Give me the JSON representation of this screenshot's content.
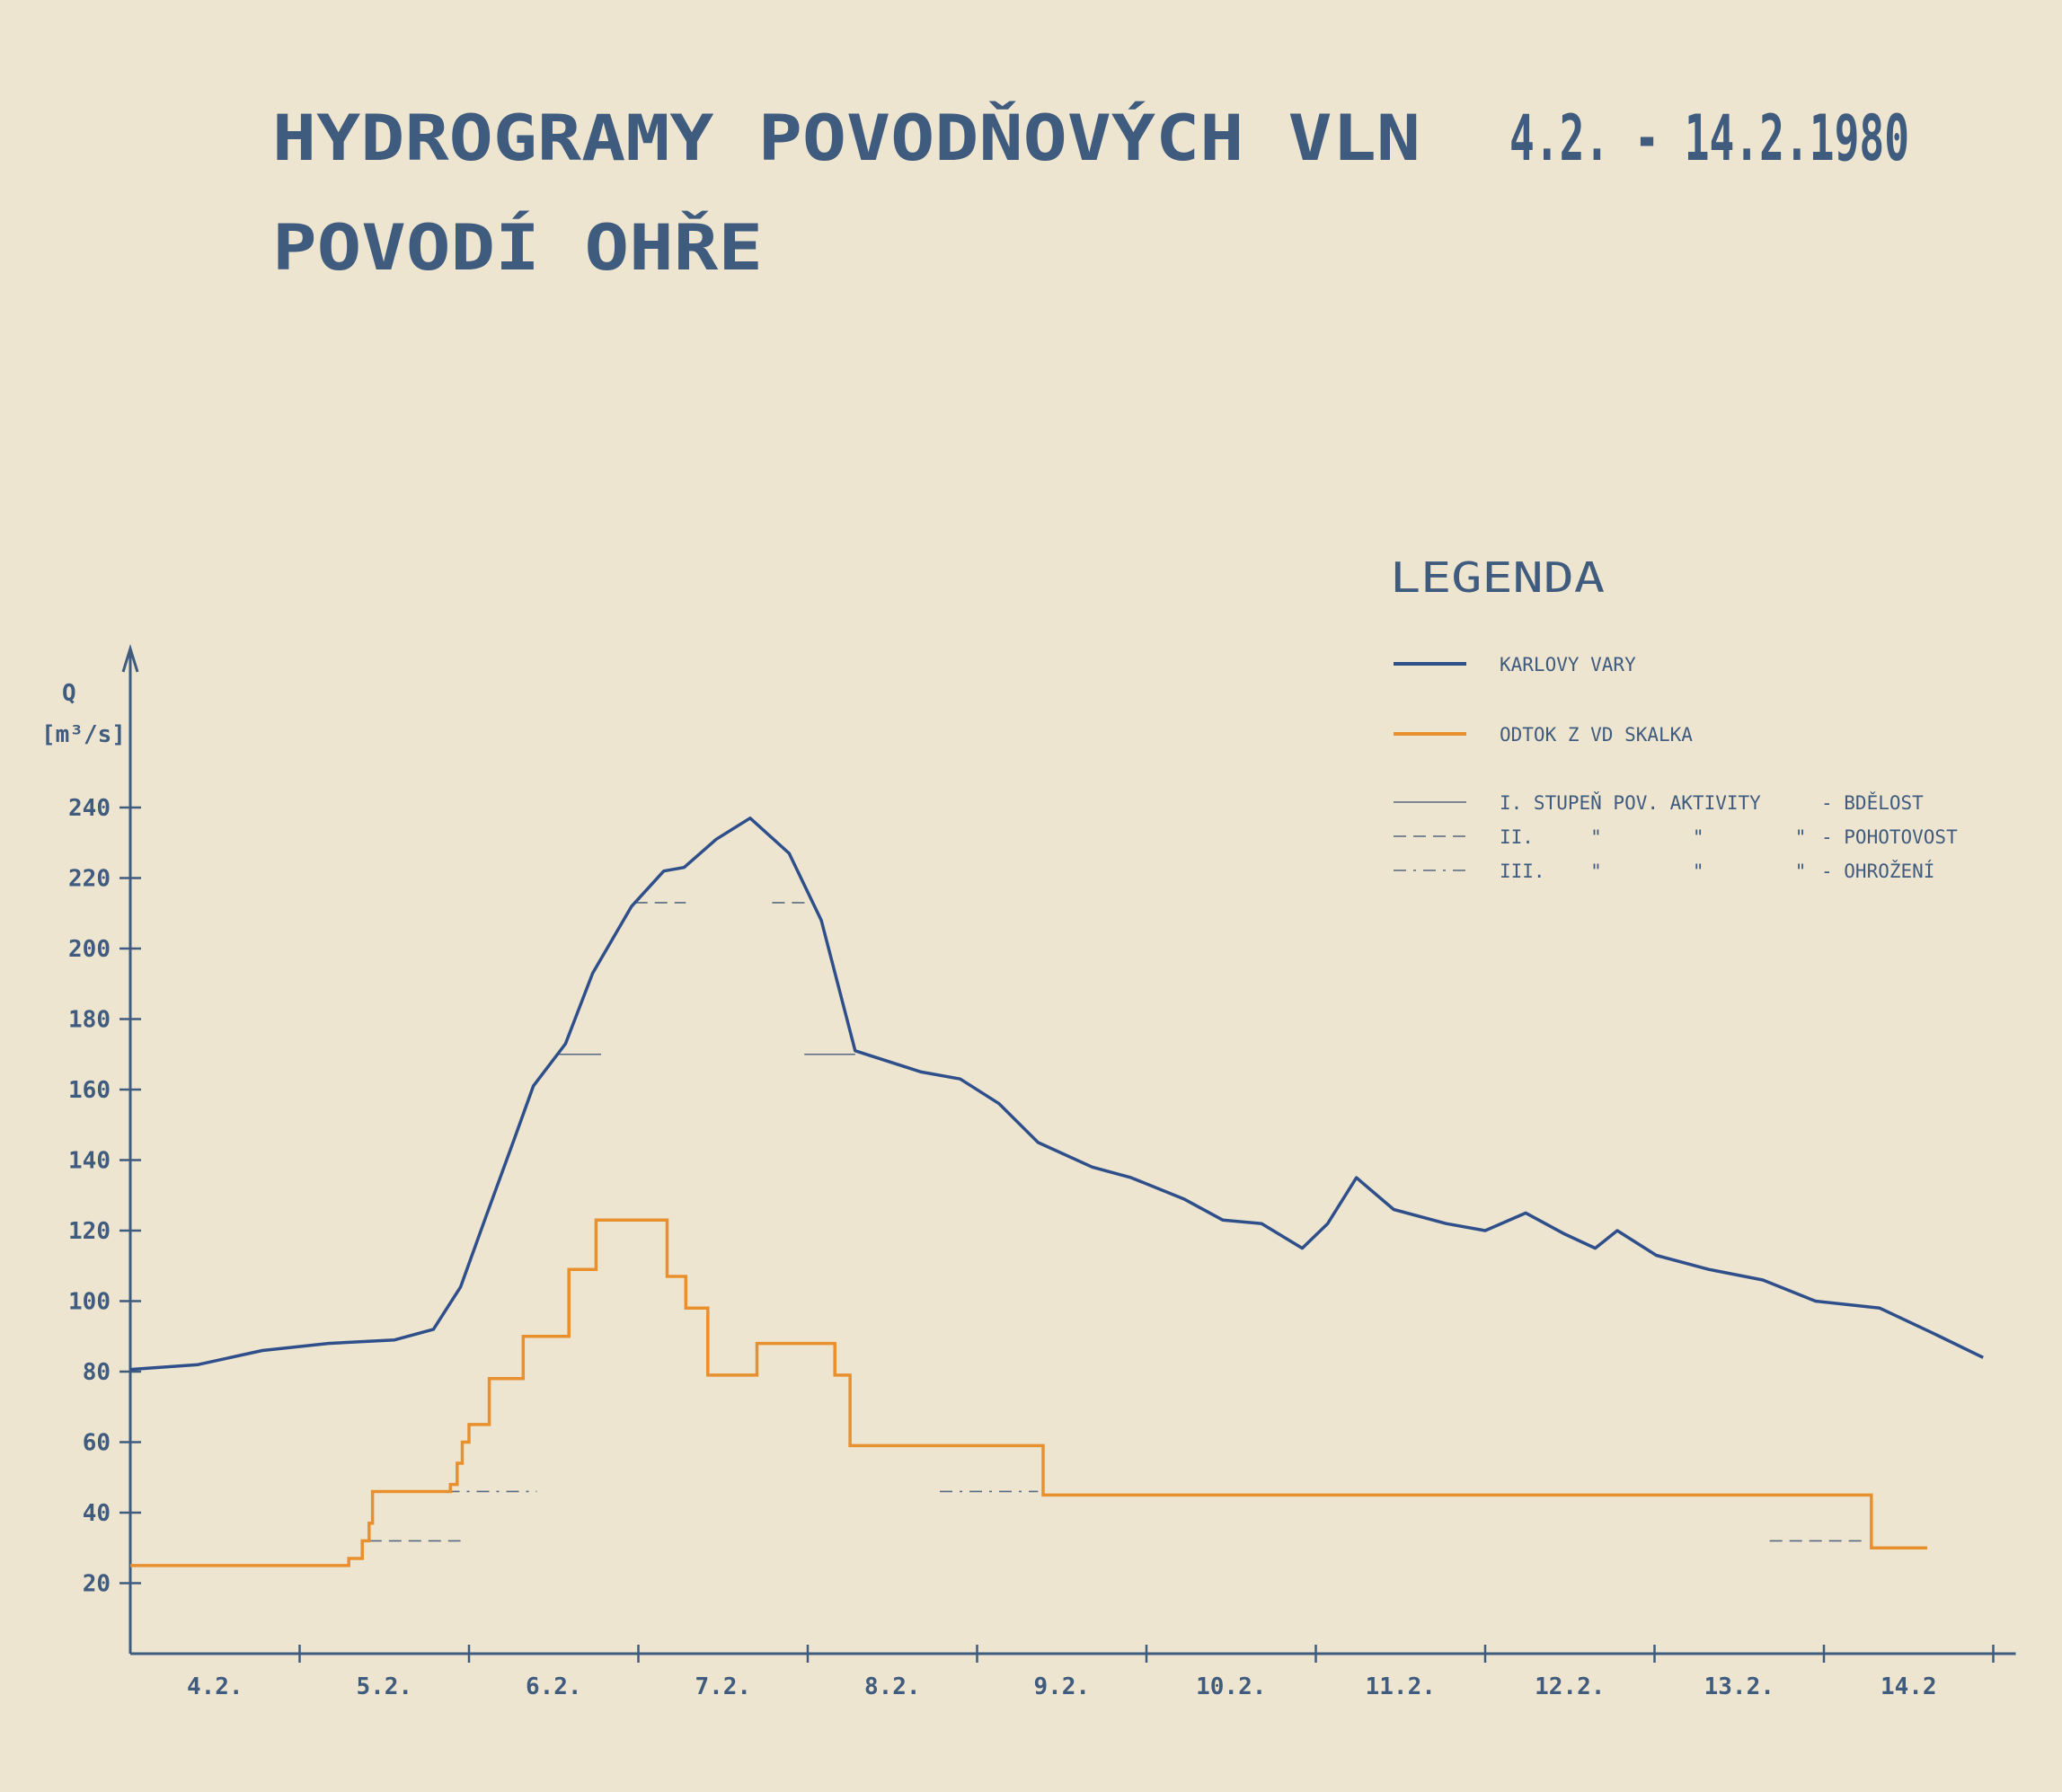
{
  "title": {
    "line1": "HYDROGRAMY POVODŇOVÝCH VLN",
    "dates": "4.2. - 14.2.1980",
    "line2": "POVODÍ OHŘE"
  },
  "colors": {
    "ink": "#3f5b7e",
    "karlovy_vary": "#2f4f8a",
    "skalka": "#e8902e",
    "paper": "#eee5d1"
  },
  "legend": {
    "title": "LEGENDA",
    "items": [
      {
        "label": "KARLOVY VARY",
        "style": "blue-line"
      },
      {
        "label": "ODTOK Z VD SKALKA",
        "style": "orange-line"
      },
      {
        "label": "I. STUPEŇ POV. AKTIVITY",
        "level": "- BDĚLOST",
        "style": "solid"
      },
      {
        "label": "II.     \"        \"        \"",
        "level": "- POHOTOVOST",
        "style": "dashed"
      },
      {
        "label": "III.    \"        \"        \"",
        "level": "- OHROŽENÍ",
        "style": "dash-dot"
      }
    ]
  },
  "chart_data": {
    "type": "line",
    "title": "HYDROGRAMY POVODŇOVÝCH VLN 4.2. - 14.2.1980 POVODÍ OHŘE",
    "ylabel": "Q",
    "yunit": "[m³/s]",
    "xlabel": "",
    "ylim": [
      0,
      250
    ],
    "xlim_days": [
      0,
      11
    ],
    "yticks": [
      20,
      40,
      60,
      80,
      100,
      120,
      140,
      160,
      180,
      200,
      220,
      240
    ],
    "xtick_labels": [
      "4.2.",
      "5.2.",
      "6.2.",
      "7.2.",
      "8.2.",
      "9.2.",
      "10.2.",
      "11.2.",
      "12.2.",
      "13.2.",
      "14.2"
    ],
    "grid": false,
    "legend_position": "top-right",
    "series": [
      {
        "name": "KARLOVY VARY",
        "kind": "line",
        "x_days": [
          0,
          0.4,
          0.78,
          1.17,
          1.56,
          1.79,
          1.95,
          2.1,
          2.26,
          2.38,
          2.57,
          2.73,
          2.96,
          3.15,
          3.27,
          3.46,
          3.66,
          3.89,
          4.08,
          4.28,
          4.67,
          4.9,
          5.13,
          5.36,
          5.68,
          5.91,
          6.22,
          6.45,
          6.68,
          6.92,
          7.07,
          7.24,
          7.46,
          7.77,
          8.0,
          8.24,
          8.47,
          8.65,
          8.78,
          9.01,
          9.32,
          9.64,
          9.95,
          10.33,
          10.64,
          10.94
        ],
        "values": [
          80.6,
          82,
          86,
          88,
          89,
          92,
          104,
          124,
          145,
          161,
          173,
          193,
          212,
          222,
          223,
          231,
          237,
          227,
          208,
          171,
          165,
          163,
          156,
          145,
          138,
          135,
          129,
          123,
          122,
          115,
          122,
          135,
          126,
          122,
          120,
          125,
          119,
          115,
          120,
          113,
          109,
          106,
          100,
          98,
          91,
          84
        ]
      },
      {
        "name": "ODTOK Z VD SKALKA",
        "kind": "step",
        "x_days": [
          0,
          1.29,
          1.37,
          1.41,
          1.43,
          1.89,
          1.93,
          1.96,
          2.0,
          2.12,
          2.32,
          2.59,
          2.75,
          3.17,
          3.28,
          3.41,
          3.7,
          4.16,
          4.25,
          5.39,
          10.28,
          10.61
        ],
        "values": [
          25,
          27,
          32,
          37,
          46,
          48,
          54,
          60,
          65,
          78,
          90,
          109,
          123,
          107,
          98,
          79,
          88,
          79,
          59,
          45,
          30,
          30
        ]
      }
    ],
    "thresholds": [
      {
        "name": "I. stupeň - bdělost",
        "style": "solid",
        "value": 170,
        "segments_days": [
          [
            2.53,
            2.78
          ],
          [
            3.98,
            4.28
          ]
        ]
      },
      {
        "name": "II. stupeň - pohotovost (Karlovy Vary)",
        "style": "dashed",
        "value": 213,
        "segments_days": [
          [
            2.98,
            3.28
          ],
          [
            3.79,
            4.02
          ]
        ]
      },
      {
        "name": "II. stupeň - pohotovost (Skalka)",
        "style": "dashed",
        "value": 32,
        "segments_days": [
          [
            1.41,
            1.95
          ],
          [
            9.68,
            10.26
          ]
        ]
      },
      {
        "name": "III. stupeň - ohrožení",
        "style": "dash-dot",
        "value": 46,
        "segments_days": [
          [
            1.87,
            2.4
          ],
          [
            4.78,
            5.36
          ]
        ]
      }
    ]
  }
}
